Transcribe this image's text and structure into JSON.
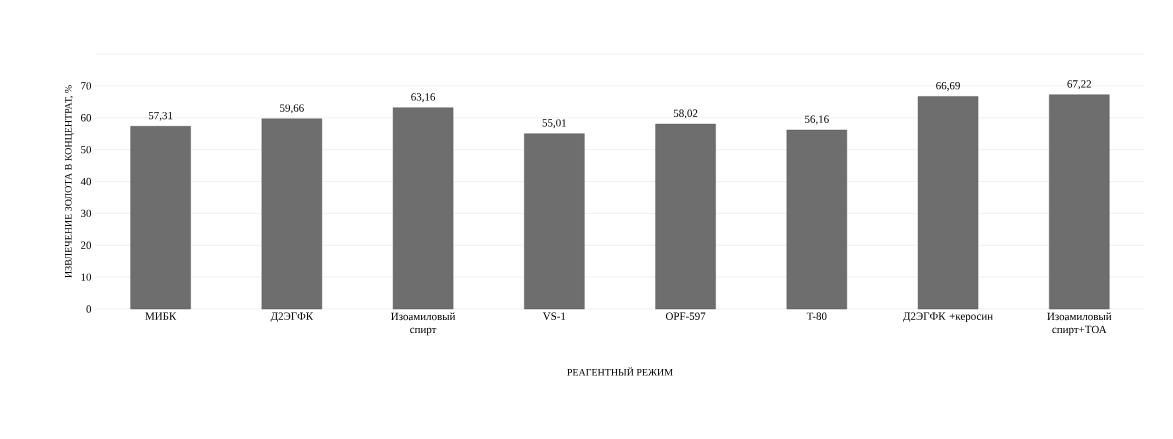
{
  "chart_data": {
    "type": "bar",
    "xlabel": "РЕАГЕНТНЫЙ  РЕЖИМ",
    "ylabel": "ИЗВЛЕЧЕНИЕ  ЗОЛОТА В КОНЦЕНТРАТ, %",
    "categories": [
      "МИБК",
      "Д2ЭГФК",
      "Изоамиловый спирт",
      "VS-1",
      "OPF-597",
      "T-80",
      "Д2ЭГФК +керосин",
      "Изоамиловый спирт+ТОА"
    ],
    "values": [
      57.31,
      59.66,
      63.16,
      55.01,
      58.02,
      56.16,
      66.69,
      67.22
    ],
    "value_labels": [
      "57,31",
      "59,66",
      "63,16",
      "55,01",
      "58,02",
      "56,16",
      "66,69",
      "67,22"
    ],
    "color": "#6e6e6e",
    "ylim": [
      0,
      80
    ],
    "yticks": [
      0,
      10,
      20,
      30,
      40,
      50,
      60,
      70,
      {
        "value": 80,
        "label": null
      }
    ],
    "grid": "y"
  }
}
